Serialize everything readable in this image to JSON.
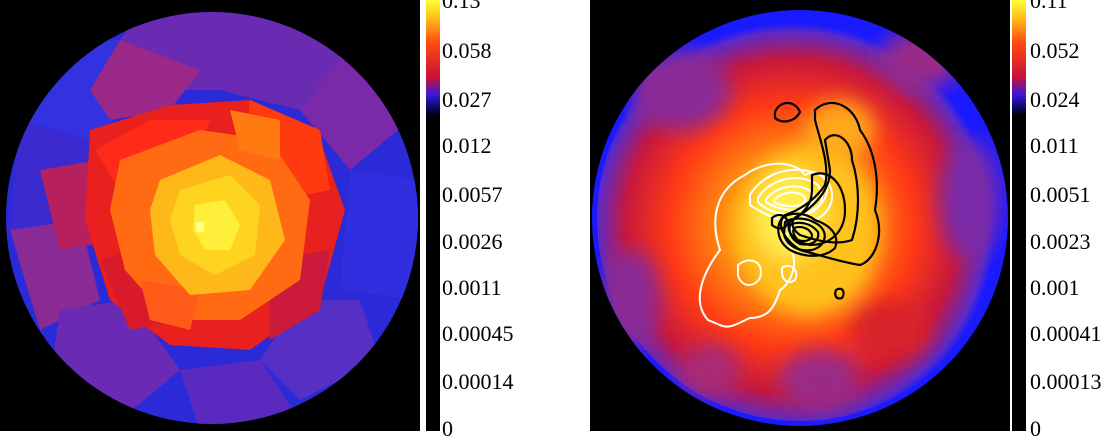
{
  "panels": [
    {
      "id": "left",
      "description_colormap": [
        "#000000",
        "#1a1aff",
        "#6a22b8",
        "#c3124a",
        "#ff1a0a",
        "#ff7a0a",
        "#ffd81a",
        "#ffff66"
      ],
      "colorbar_ticks": [
        "0.13",
        "0.058",
        "0.027",
        "0.012",
        "0.0057",
        "0.0026",
        "0.0011",
        "0.00045",
        "0.00014",
        "0"
      ]
    },
    {
      "id": "right",
      "description_colormap": [
        "#000000",
        "#1a1aff",
        "#6a22b8",
        "#c3124a",
        "#ff1a0a",
        "#ff7a0a",
        "#ffd81a",
        "#ffff66"
      ],
      "colorbar_ticks": [
        "0.11",
        "0.052",
        "0.024",
        "0.011",
        "0.0051",
        "0.0023",
        "0.001",
        "0.00041",
        "0.00013",
        "0"
      ]
    }
  ]
}
